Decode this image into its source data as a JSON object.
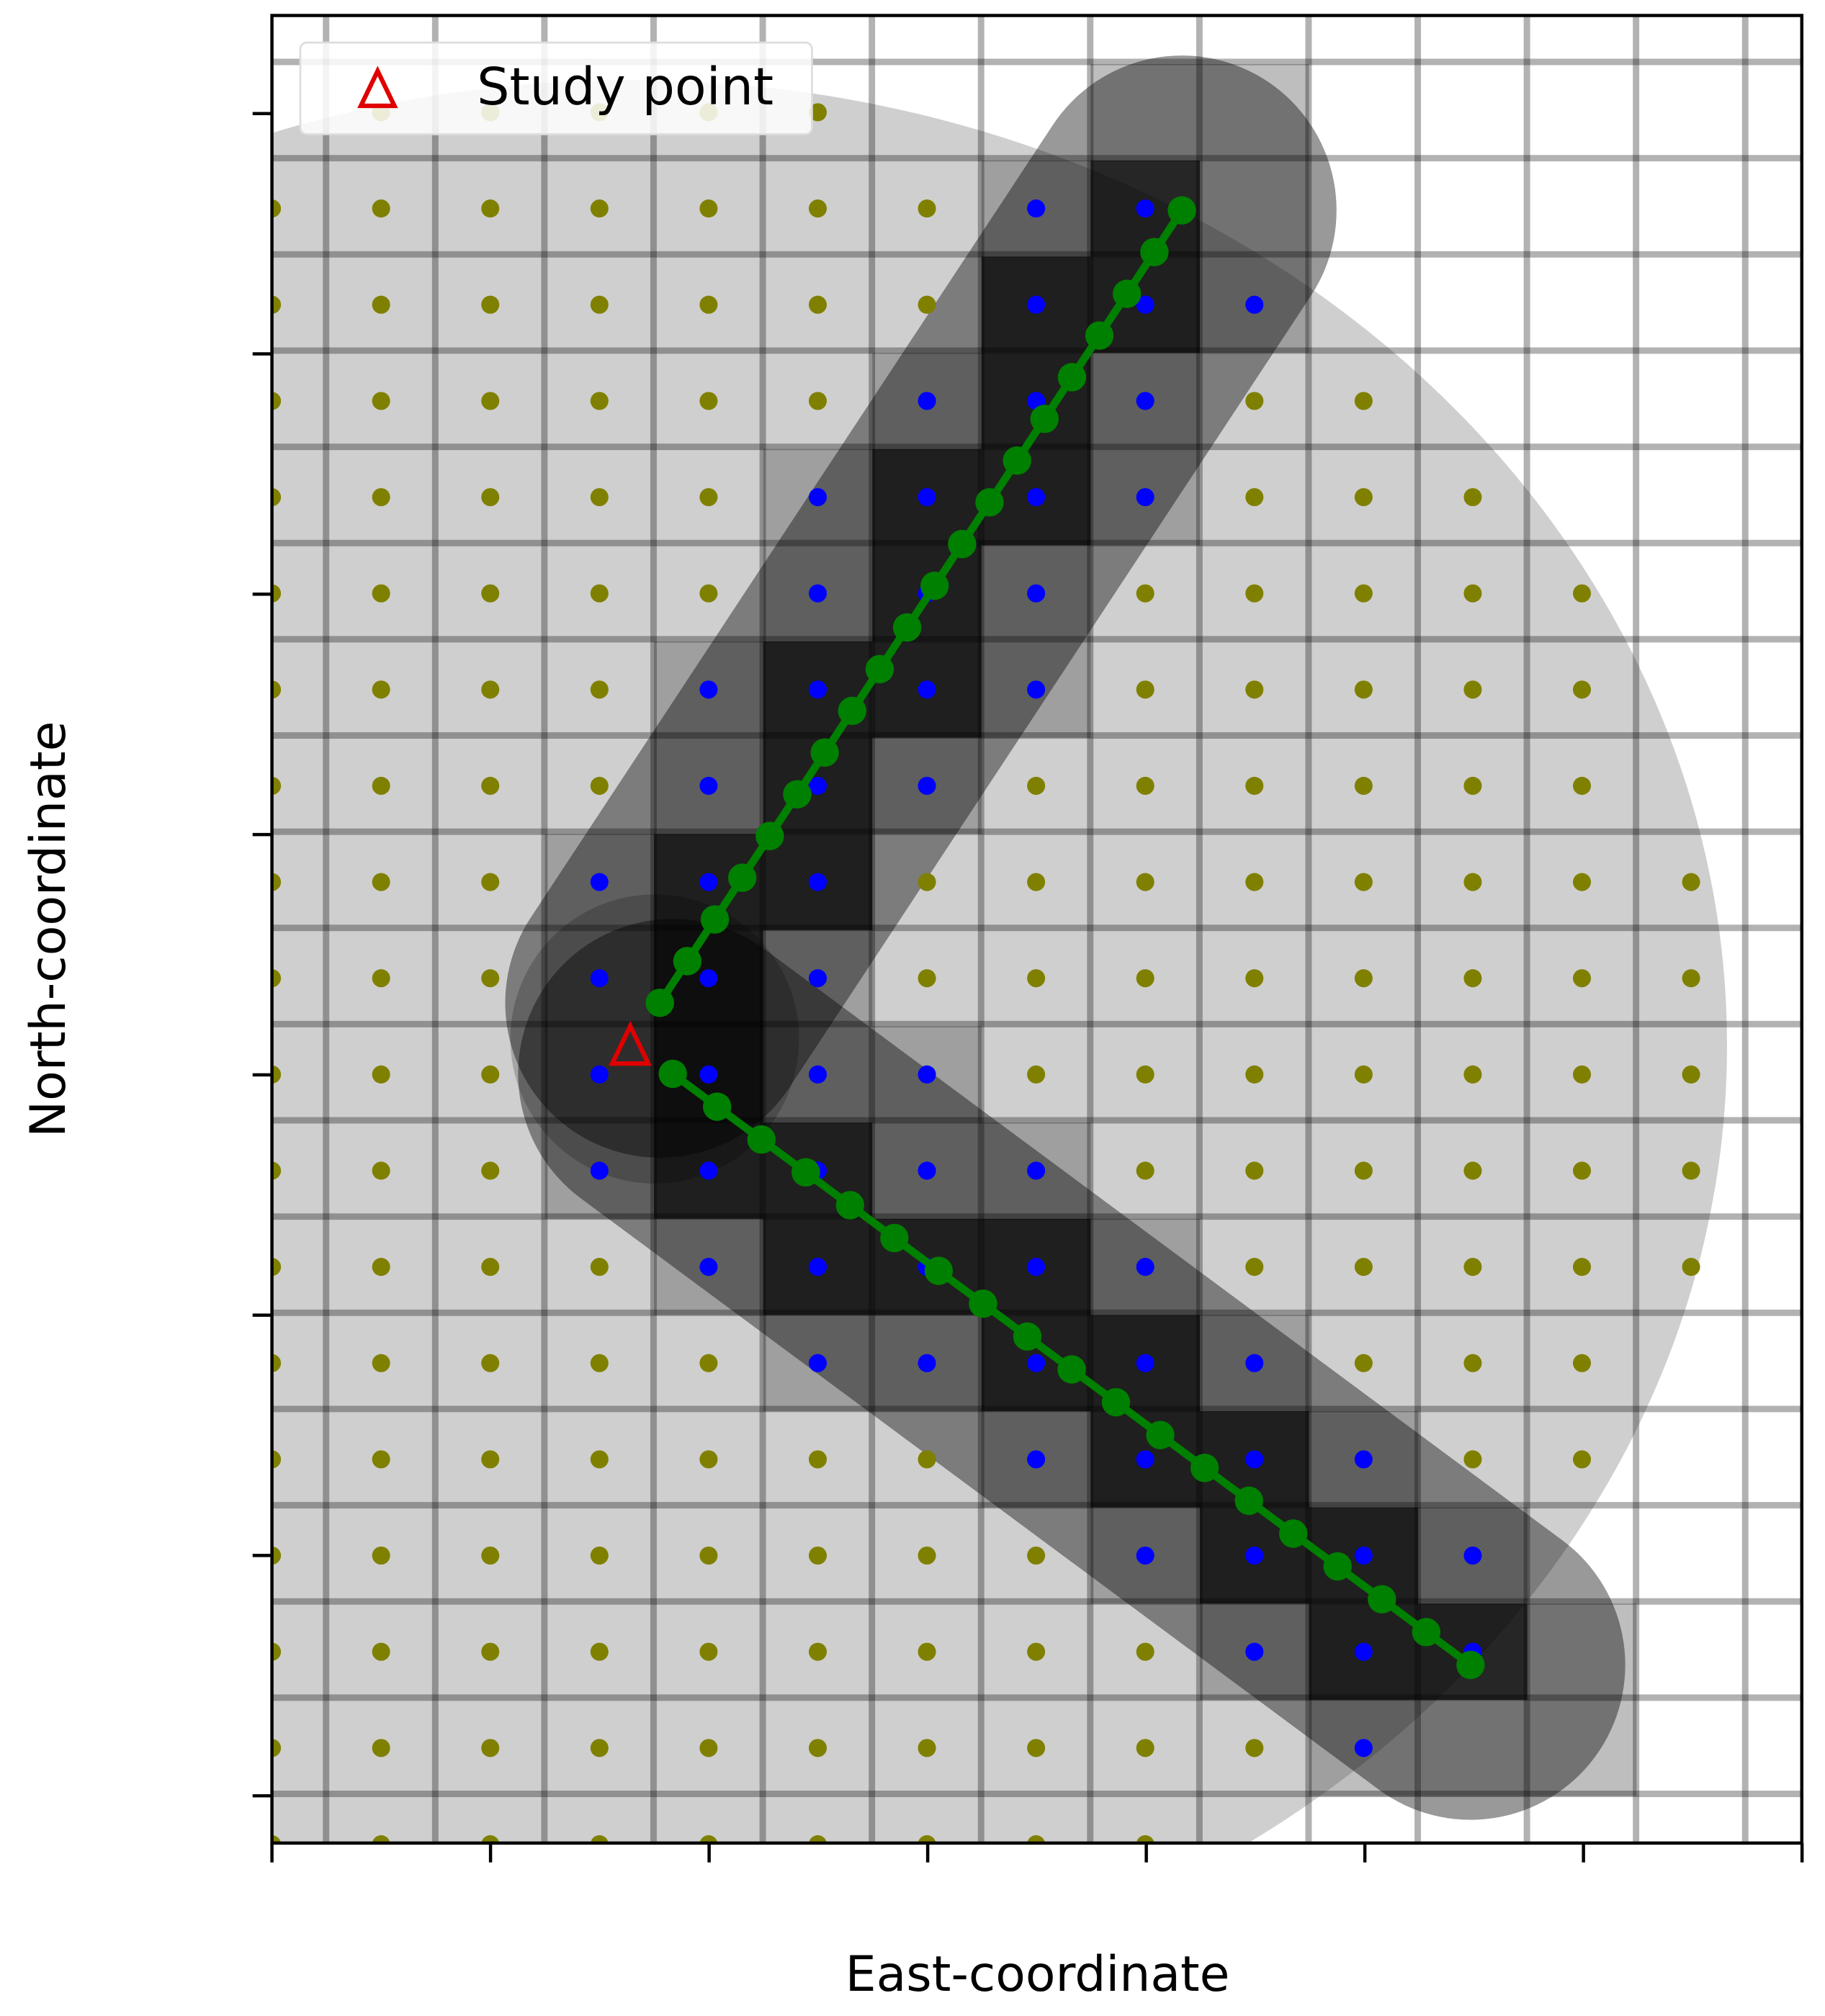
{
  "legend": {
    "label": "Study point"
  },
  "axes": {
    "x_label": "East-coordinate",
    "y_label": "North-coordinate"
  }
}
